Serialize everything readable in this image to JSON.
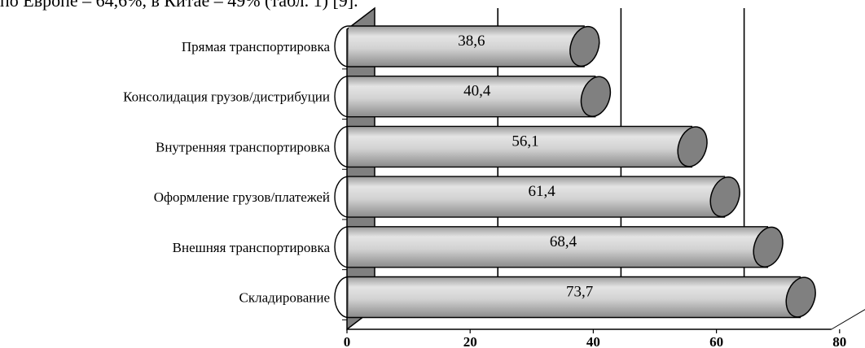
{
  "context_text": "по Европе – 64,6%, в Китае – 49% (табл. 1) [9].",
  "chart_data": {
    "type": "bar",
    "orientation": "horizontal",
    "style": "3d-cylinder",
    "categories": [
      "Прямая транспортировка",
      "Консолидация грузов/дистрибуции",
      "Внутренняя транспортировка",
      "Оформление грузов/платежей",
      "Внешняя транспортировка",
      "Складирование"
    ],
    "values": [
      38.6,
      40.4,
      56.1,
      61.4,
      68.4,
      73.7
    ],
    "value_labels": [
      "38,6",
      "40,4",
      "56,1",
      "61,4",
      "68,4",
      "73,7"
    ],
    "xlim": [
      0,
      80
    ],
    "xticks": [
      "0",
      "20",
      "40",
      "60",
      "80"
    ],
    "title": "",
    "xlabel": "",
    "ylabel": "",
    "grid": "vertical",
    "bar_color": "#d9d9d9",
    "end_cap_color": "#808080",
    "wall_color": "#808080"
  }
}
